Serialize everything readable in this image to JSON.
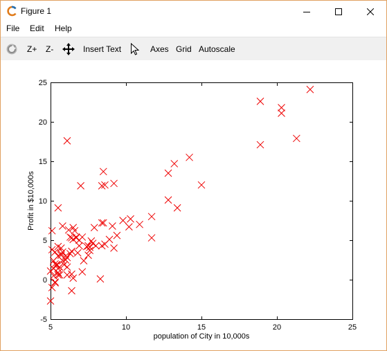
{
  "window": {
    "title": "Figure 1",
    "accent": "#e0a060"
  },
  "menu": {
    "file": "File",
    "edit": "Edit",
    "help": "Help"
  },
  "toolbar": {
    "zoom_in": "Z+",
    "zoom_out": "Z-",
    "insert_text": "Insert Text",
    "axes": "Axes",
    "grid": "Grid",
    "autoscale": "Autoscale"
  },
  "icons": {
    "app": "octave-logo-icon",
    "minimize": "minimize-icon",
    "maximize": "maximize-icon",
    "close": "close-icon",
    "rotate": "rotate-icon",
    "pan": "pan-move-icon",
    "select": "cursor-select-icon"
  },
  "chart_data": {
    "type": "scatter",
    "title": "",
    "xlabel": "population of City in 10,000s",
    "ylabel": "Profit in $10,000s",
    "xlim": [
      5,
      25
    ],
    "ylim": [
      -5,
      25
    ],
    "xticks": [
      "5",
      "10",
      "15",
      "20",
      "25"
    ],
    "yticks": [
      "-5",
      "0",
      "5",
      "10",
      "15",
      "20",
      "25"
    ],
    "marker": "x",
    "color": "#ee0000",
    "grid": false,
    "points": [
      [
        6.1,
        17.6
      ],
      [
        5.5,
        9.1
      ],
      [
        8.5,
        13.7
      ],
      [
        7.0,
        11.9
      ],
      [
        5.8,
        6.8
      ],
      [
        8.4,
        11.9
      ],
      [
        7.5,
        4.3
      ],
      [
        8.6,
        12.0
      ],
      [
        6.5,
        6.6
      ],
      [
        5.1,
        3.8
      ],
      [
        5.7,
        3.3
      ],
      [
        14.2,
        15.5
      ],
      [
        5.7,
        3.1
      ],
      [
        8.4,
        7.2
      ],
      [
        6.4,
        0.7
      ],
      [
        5.3,
        3.5
      ],
      [
        6.4,
        5.3
      ],
      [
        5.6,
        0.6
      ],
      [
        6.3,
        5.4
      ],
      [
        7.1,
        5.4
      ],
      [
        5.1,
        6.2
      ],
      [
        5.5,
        0.6
      ],
      [
        8.5,
        7.2
      ],
      [
        7.2,
        2.4
      ],
      [
        6.6,
        6.2
      ],
      [
        7.9,
        6.6
      ],
      [
        6.0,
        3.0
      ],
      [
        5.2,
        2.4
      ],
      [
        6.2,
        6.3
      ],
      [
        5.5,
        4.2
      ],
      [
        7.1,
        1.0
      ],
      [
        7.5,
        3.1
      ],
      [
        6.1,
        0.6
      ],
      [
        5.5,
        1.4
      ],
      [
        5.5,
        3.0
      ],
      [
        6.0,
        2.5
      ],
      [
        6.7,
        5.3
      ],
      [
        8.0,
        4.3
      ],
      [
        12.8,
        13.5
      ],
      [
        5.7,
        4.0
      ],
      [
        5.8,
        2.4
      ],
      [
        6.9,
        5.0
      ],
      [
        6.8,
        3.4
      ],
      [
        6.5,
        5.1
      ],
      [
        6.1,
        2.8
      ],
      [
        5.3,
        -0.4
      ],
      [
        5.1,
        -1.0
      ],
      [
        5.5,
        0.9
      ],
      [
        6.3,
        3.3
      ],
      [
        5.9,
        1.9
      ],
      [
        6.5,
        0.2
      ],
      [
        8.9,
        5.1
      ],
      [
        5.0,
        -2.7
      ],
      [
        5.4,
        1.8
      ],
      [
        9.2,
        4.0
      ],
      [
        5.3,
        2.0
      ],
      [
        5.0,
        1.1
      ],
      [
        5.2,
        0.5
      ],
      [
        5.3,
        -0.3
      ],
      [
        6.4,
        -1.4
      ],
      [
        5.2,
        1.4
      ],
      [
        5.6,
        1.6
      ],
      [
        5.4,
        1.9
      ],
      [
        6.4,
        3.6
      ],
      [
        8.3,
        0.1
      ],
      [
        9.2,
        12.2
      ],
      [
        10.2,
        6.7
      ],
      [
        12.8,
        10.1
      ],
      [
        13.4,
        9.1
      ],
      [
        13.2,
        14.7
      ],
      [
        15.0,
        12.0
      ],
      [
        11.7,
        5.3
      ],
      [
        18.9,
        22.6
      ],
      [
        20.3,
        21.8
      ],
      [
        22.2,
        24.1
      ],
      [
        20.3,
        21.1
      ],
      [
        21.3,
        17.9
      ],
      [
        18.9,
        17.1
      ],
      [
        10.3,
        7.7
      ],
      [
        10.9,
        7.0
      ],
      [
        11.7,
        8.0
      ],
      [
        9.8,
        7.5
      ],
      [
        9.4,
        5.6
      ],
      [
        8.6,
        4.5
      ],
      [
        7.8,
        4.6
      ],
      [
        7.6,
        4.1
      ],
      [
        8.4,
        4.3
      ],
      [
        7.4,
        4.2
      ],
      [
        7.6,
        3.7
      ],
      [
        7.7,
        4.9
      ],
      [
        6.9,
        4.3
      ],
      [
        6.7,
        5.4
      ],
      [
        5.8,
        3.5
      ],
      [
        5.4,
        1.9
      ],
      [
        6.1,
        1.6
      ],
      [
        9.1,
        6.8
      ]
    ]
  }
}
